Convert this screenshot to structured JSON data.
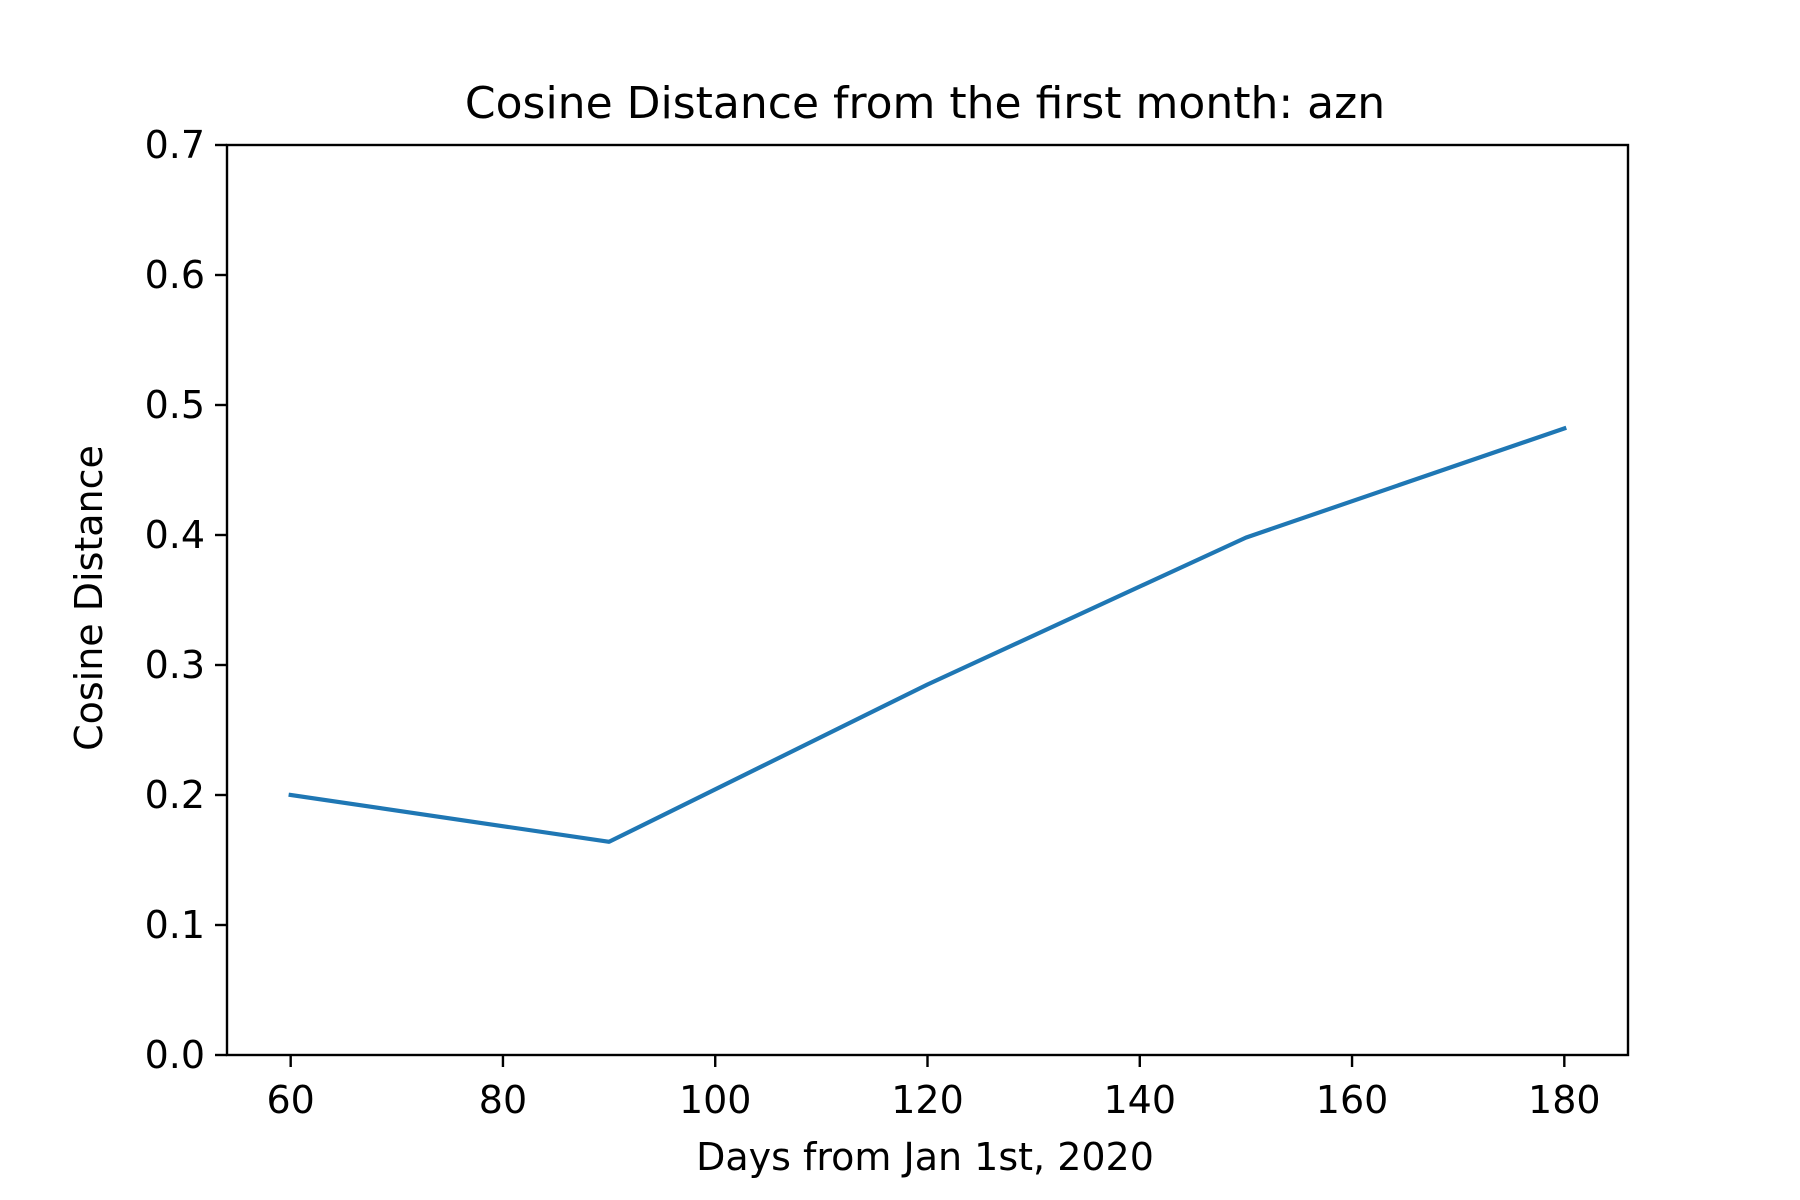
{
  "chart_data": {
    "type": "line",
    "title": "Cosine Distance from the first month: azn",
    "xlabel": "Days from Jan 1st, 2020",
    "ylabel": "Cosine Distance",
    "xlim": [
      54,
      186
    ],
    "ylim": [
      0.0,
      0.7
    ],
    "xticks": [
      60,
      80,
      100,
      120,
      140,
      160,
      180
    ],
    "xtick_labels": [
      "60",
      "80",
      "100",
      "120",
      "140",
      "160",
      "180"
    ],
    "yticks": [
      0.0,
      0.1,
      0.2,
      0.3,
      0.4,
      0.5,
      0.6,
      0.7
    ],
    "ytick_labels": [
      "0.0",
      "0.1",
      "0.2",
      "0.3",
      "0.4",
      "0.5",
      "0.6",
      "0.7"
    ],
    "grid": false,
    "series": [
      {
        "x": [
          60,
          90,
          120,
          150,
          180
        ],
        "y": [
          0.2,
          0.164,
          0.285,
          0.398,
          0.482
        ],
        "color": "#1f77b4"
      }
    ]
  }
}
